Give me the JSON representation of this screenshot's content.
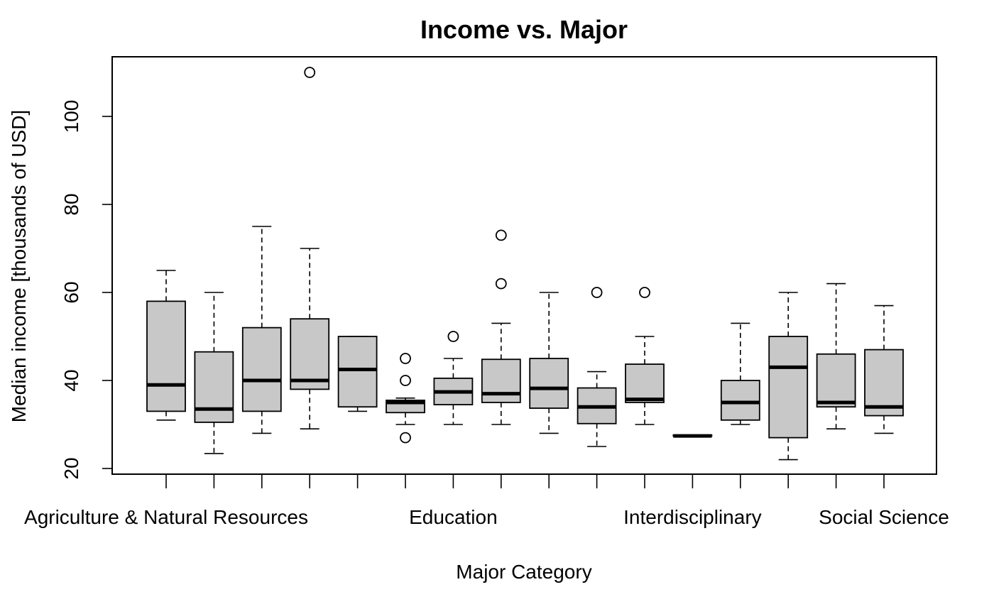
{
  "chart_data": {
    "type": "boxplot",
    "title": "Income vs. Major",
    "xlabel": "Major Category",
    "ylabel": "Median income [thousands of USD]",
    "ylim": [
      20,
      110
    ],
    "yticks": [
      20,
      40,
      60,
      80,
      100
    ],
    "grid": false,
    "box_fill": "#c8c8c8",
    "category_labels_shown": [
      {
        "label": "Agriculture & Natural Resources",
        "index": 0
      },
      {
        "label": "Education",
        "index": 6
      },
      {
        "label": "Interdisciplinary",
        "index": 11
      },
      {
        "label": "Social Science",
        "index": 15
      }
    ],
    "boxes": [
      {
        "whisker_low": 31,
        "q1": 33,
        "median": 39,
        "q3": 58,
        "whisker_high": 65,
        "outliers": []
      },
      {
        "whisker_low": 23.4,
        "q1": 30.5,
        "median": 33.5,
        "q3": 46.5,
        "whisker_high": 60,
        "outliers": []
      },
      {
        "whisker_low": 28,
        "q1": 33,
        "median": 40,
        "q3": 52,
        "whisker_high": 75,
        "outliers": []
      },
      {
        "whisker_low": 29,
        "q1": 38,
        "median": 40,
        "q3": 54,
        "whisker_high": 70,
        "outliers": [
          110
        ]
      },
      {
        "whisker_low": 33,
        "q1": 34,
        "median": 42.5,
        "q3": 50,
        "whisker_high": 50,
        "outliers": []
      },
      {
        "whisker_low": 30,
        "q1": 32.7,
        "median": 35,
        "q3": 35.5,
        "whisker_high": 36,
        "outliers": [
          45,
          40,
          27
        ]
      },
      {
        "whisker_low": 30,
        "q1": 34.5,
        "median": 37.4,
        "q3": 40.5,
        "whisker_high": 45,
        "outliers": [
          50
        ]
      },
      {
        "whisker_low": 30,
        "q1": 35,
        "median": 37,
        "q3": 44.8,
        "whisker_high": 53,
        "outliers": [
          73,
          62
        ]
      },
      {
        "whisker_low": 28,
        "q1": 33.7,
        "median": 38.2,
        "q3": 45,
        "whisker_high": 60,
        "outliers": []
      },
      {
        "whisker_low": 25,
        "q1": 30.2,
        "median": 34,
        "q3": 38.3,
        "whisker_high": 42,
        "outliers": [
          60
        ]
      },
      {
        "whisker_low": 30,
        "q1": 35,
        "median": 35.7,
        "q3": 43.7,
        "whisker_high": 50,
        "outliers": [
          60
        ]
      },
      {
        "whisker_low": 27.4,
        "q1": 27.4,
        "median": 27.4,
        "q3": 27.6,
        "whisker_high": 27.6,
        "outliers": []
      },
      {
        "whisker_low": 30,
        "q1": 31,
        "median": 35,
        "q3": 40,
        "whisker_high": 53,
        "outliers": []
      },
      {
        "whisker_low": 22,
        "q1": 27,
        "median": 43,
        "q3": 50,
        "whisker_high": 60,
        "outliers": []
      },
      {
        "whisker_low": 29,
        "q1": 34,
        "median": 35,
        "q3": 46,
        "whisker_high": 62,
        "outliers": []
      },
      {
        "whisker_low": 28,
        "q1": 32,
        "median": 34,
        "q3": 47,
        "whisker_high": 57,
        "outliers": []
      }
    ]
  }
}
